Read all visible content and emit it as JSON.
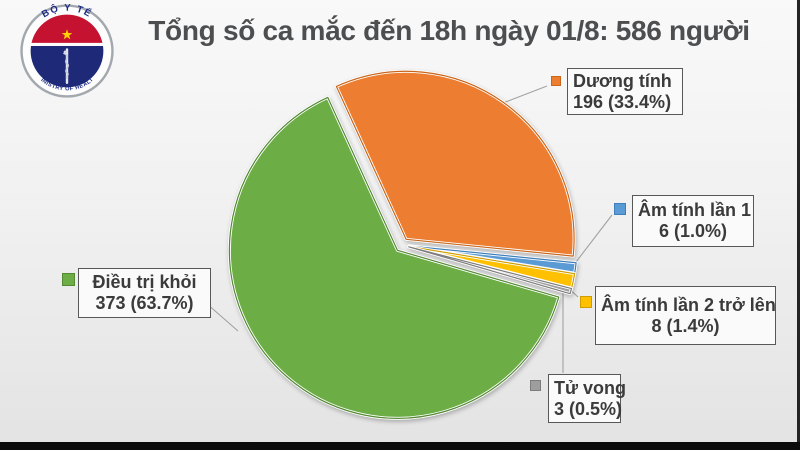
{
  "title": {
    "text": "Tổng số ca mắc đến 18h ngày 01/8: 586 người"
  },
  "logo": {
    "name": "ministry-of-health-vietnam-emblem",
    "top_text": "BỘ Y TẾ",
    "bottom_text": "MINISTRY OF HEALTH",
    "colors": {
      "ring_text": "#1b2a80",
      "red_field": "#c41230",
      "navy_field": "#1e2a78",
      "star": "#ffd200",
      "staff": "#e4e6f0"
    }
  },
  "chart_data": {
    "type": "pie",
    "title": "Tổng số ca mắc đến 18h ngày 01/8: 586 người",
    "total": 586,
    "unit": "người",
    "start_angle_deg": -24.5,
    "direction": "clockwise",
    "legend_position": "callout-boxes",
    "series": [
      {
        "key": "duong-tinh",
        "label": "Dương tính",
        "value": 196,
        "pct": 33.4,
        "color": "#ED7D31",
        "border_color": "#C9661B"
      },
      {
        "key": "am-tinh-lan-1",
        "label": "Âm tính lần 1",
        "value": 6,
        "pct": 1.0,
        "color": "#5B9BD5",
        "border_color": "#3D7EBB"
      },
      {
        "key": "am-tinh-lan-2-tro-len",
        "label": "Âm tính lần 2 trở lên",
        "value": 8,
        "pct": 1.4,
        "color": "#FFC000",
        "border_color": "#CE9C00"
      },
      {
        "key": "tu-vong",
        "label": "Tử vong",
        "value": 3,
        "pct": 0.5,
        "color": "#9E9E9E",
        "border_color": "#7D7D7D"
      },
      {
        "key": "dieu-tri-khoi",
        "label": "Điều trị khỏi",
        "value": 373,
        "pct": 63.7,
        "color": "#6CAE45",
        "border_color": "#538A33"
      }
    ]
  }
}
